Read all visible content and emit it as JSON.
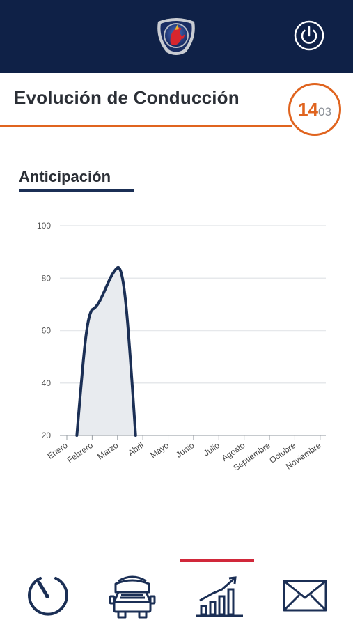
{
  "header": {
    "logo_icon": "scania-griffin-logo",
    "power_icon": "power-icon",
    "background_color": "#0f2147"
  },
  "title_row": {
    "title": "Evolución de Conducción",
    "date_day": "14",
    "date_month": "03",
    "accent_color": "#e0641f"
  },
  "section": {
    "title": "Anticipación"
  },
  "chart_data": {
    "type": "area",
    "title": "Anticipación",
    "xlabel": "",
    "ylabel": "",
    "categories": [
      "Enero",
      "Febrero",
      "Marzo",
      "Abril",
      "Mayo",
      "Junio",
      "Julio",
      "Agosto",
      "Septiembre",
      "Octubre",
      "Noviembre"
    ],
    "series": [
      {
        "values": [
          null,
          68,
          84,
          null,
          null,
          null,
          null,
          null,
          null,
          null,
          null
        ]
      }
    ],
    "y_ticks": [
      20,
      40,
      60,
      80,
      100
    ],
    "ylim": [
      20,
      100
    ],
    "grid": true,
    "line_color": "#1b2f55",
    "fill_color": "#e8ebef"
  },
  "bottom_nav": {
    "active_index": 2,
    "indicator_color": "#d1283a",
    "items": [
      {
        "icon": "speedometer-icon"
      },
      {
        "icon": "truck-icon"
      },
      {
        "icon": "chart-growth-icon"
      },
      {
        "icon": "mail-icon"
      }
    ]
  }
}
